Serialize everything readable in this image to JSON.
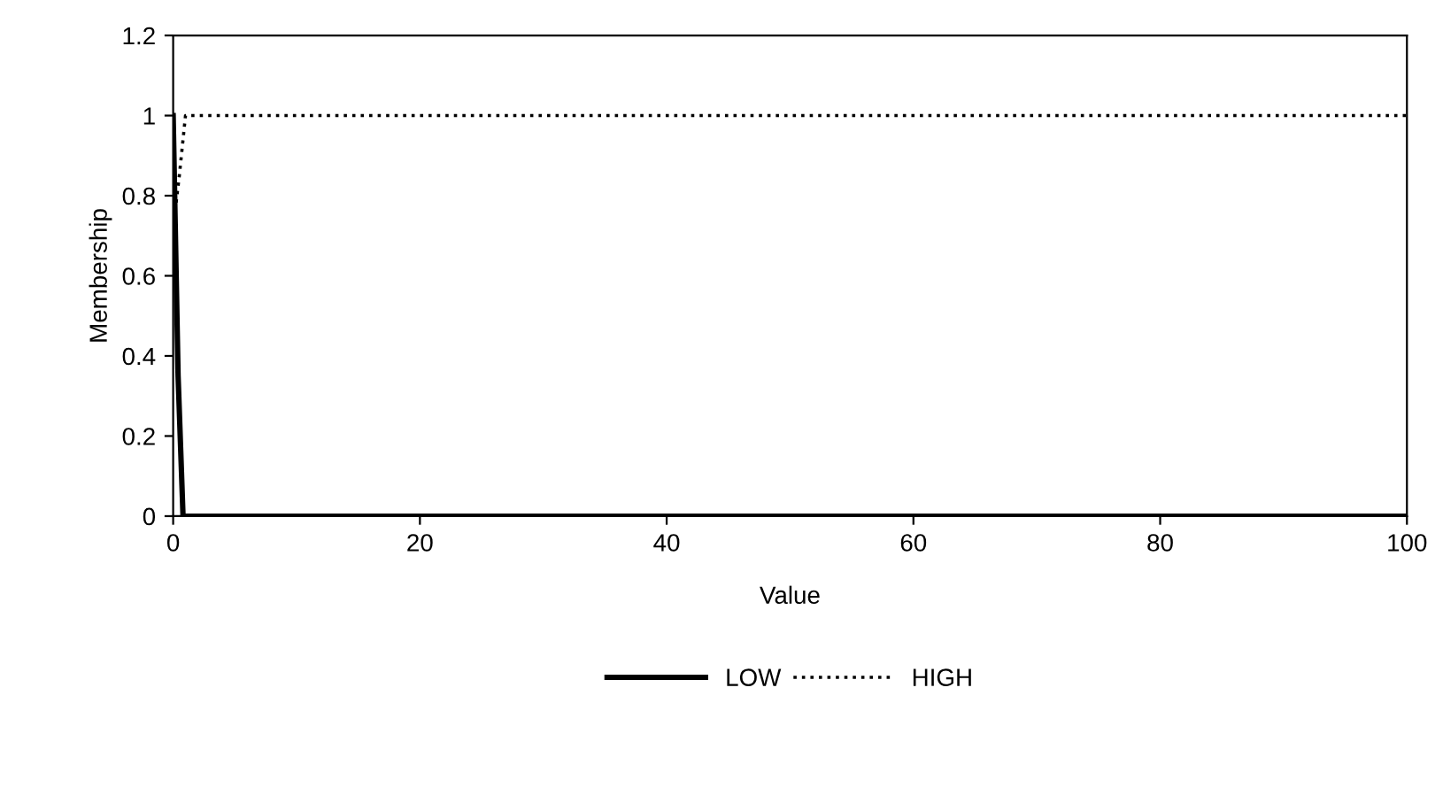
{
  "chart_data": {
    "type": "line",
    "xlabel": "Value",
    "ylabel": "Membership",
    "xlim": [
      0,
      100
    ],
    "xticks": [
      0,
      20,
      40,
      60,
      80,
      100
    ],
    "ylim": [
      0,
      1.2
    ],
    "yticks": [
      0,
      0.2,
      0.4,
      0.6,
      0.8,
      1,
      1.2
    ],
    "grid": false,
    "legend": "bottom",
    "series": [
      {
        "name": "LOW",
        "color": "#000000",
        "line_style": "solid",
        "x": [
          0,
          0.4,
          0.8,
          100
        ],
        "values": [
          1,
          0.35,
          0,
          0
        ]
      },
      {
        "name": "HIGH",
        "color": "#000000",
        "line_style": "dotted",
        "x": [
          0,
          0.5,
          1,
          100
        ],
        "values": [
          0.72,
          0.85,
          1,
          1
        ]
      }
    ]
  }
}
